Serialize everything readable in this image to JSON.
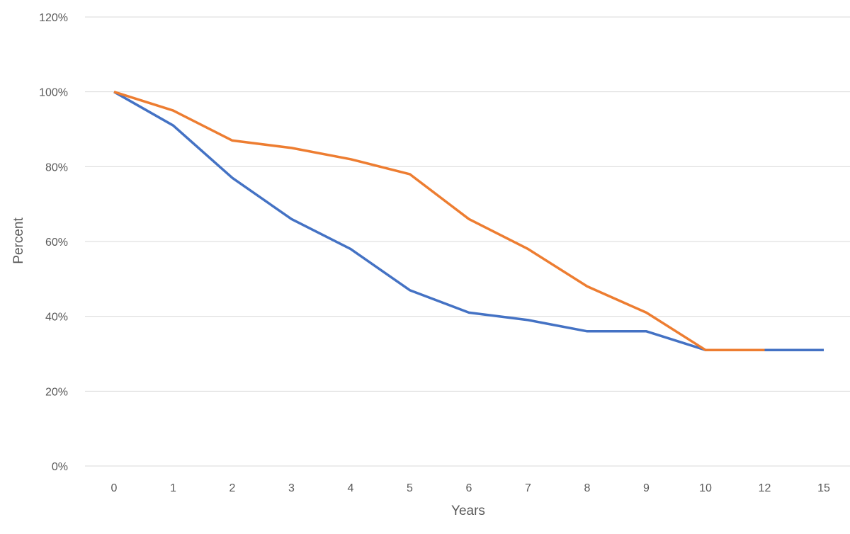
{
  "chart_data": {
    "type": "line",
    "title": "",
    "xlabel": "Years",
    "ylabel": "Percent",
    "categories": [
      "0",
      "1",
      "2",
      "3",
      "4",
      "5",
      "6",
      "7",
      "8",
      "9",
      "10",
      "12",
      "15"
    ],
    "ylim": [
      0,
      120
    ],
    "yticks": [
      "0%",
      "20%",
      "40%",
      "60%",
      "80%",
      "100%",
      "120%"
    ],
    "yticks_values": [
      0,
      20,
      40,
      60,
      80,
      100,
      120
    ],
    "grid": true,
    "legend": "none",
    "series": [
      {
        "color": "#4472c4",
        "values": [
          100,
          91,
          77,
          66,
          58,
          47,
          41,
          39,
          36,
          36,
          31,
          31,
          31
        ]
      },
      {
        "color": "#ed7d31",
        "values": [
          100,
          95,
          87,
          85,
          82,
          78,
          66,
          58,
          48,
          41,
          31,
          31,
          null
        ]
      }
    ]
  }
}
